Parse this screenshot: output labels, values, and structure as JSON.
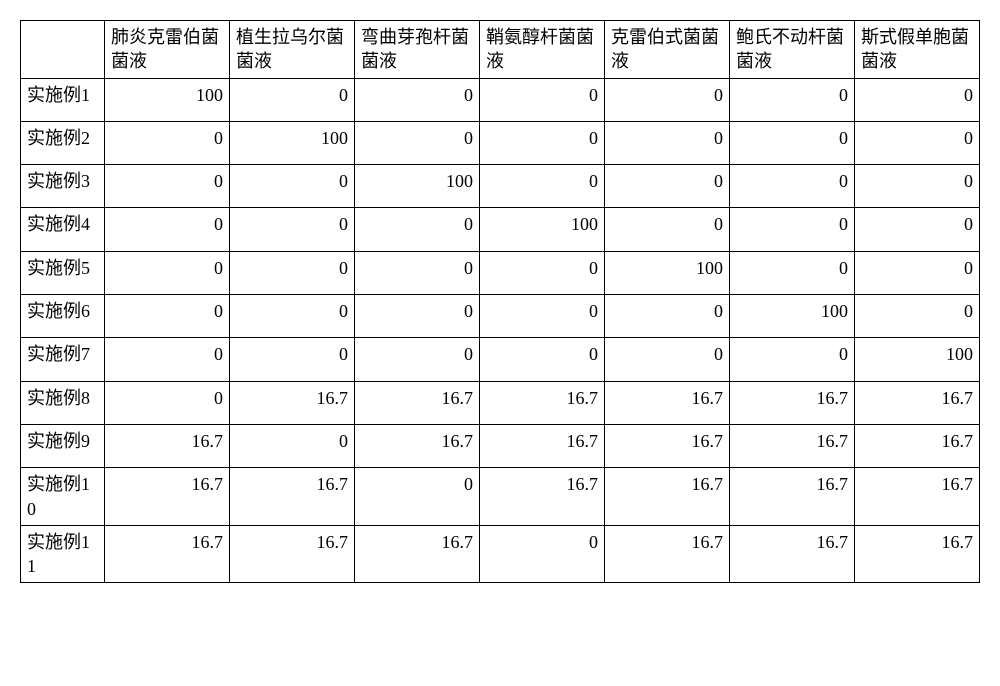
{
  "table": {
    "type": "table",
    "background_color": "#ffffff",
    "border_color": "#000000",
    "text_color": "#000000",
    "font_family": "SimSun",
    "header_fontsize": 18,
    "body_fontsize": 18,
    "column_alignment": [
      "left",
      "right",
      "right",
      "right",
      "right",
      "right",
      "right",
      "right"
    ],
    "columns": [
      "",
      "肺炎克雷伯菌菌液",
      "植生拉乌尔菌菌液",
      "弯曲芽孢杆菌菌液",
      "鞘氨醇杆菌菌液",
      "克雷伯式菌菌液",
      "鲍氏不动杆菌菌液",
      "斯式假单胞菌菌液"
    ],
    "rows": [
      [
        "实施例1",
        "100",
        "0",
        "0",
        "0",
        "0",
        "0",
        "0"
      ],
      [
        "实施例2",
        "0",
        "100",
        "0",
        "0",
        "0",
        "0",
        "0"
      ],
      [
        "实施例3",
        "0",
        "0",
        "100",
        "0",
        "0",
        "0",
        "0"
      ],
      [
        "实施例4",
        "0",
        "0",
        "0",
        "100",
        "0",
        "0",
        "0"
      ],
      [
        "实施例5",
        "0",
        "0",
        "0",
        "0",
        "100",
        "0",
        "0"
      ],
      [
        "实施例6",
        "0",
        "0",
        "0",
        "0",
        "0",
        "100",
        "0"
      ],
      [
        "实施例7",
        "0",
        "0",
        "0",
        "0",
        "0",
        "0",
        "100"
      ],
      [
        "实施例8",
        "0",
        "16.7",
        "16.7",
        "16.7",
        "16.7",
        "16.7",
        "16.7"
      ],
      [
        "实施例9",
        "16.7",
        "0",
        "16.7",
        "16.7",
        "16.7",
        "16.7",
        "16.7"
      ],
      [
        "实施例10",
        "16.7",
        "16.7",
        "0",
        "16.7",
        "16.7",
        "16.7",
        "16.7"
      ],
      [
        "实施例11",
        "16.7",
        "16.7",
        "16.7",
        "0",
        "16.7",
        "16.7",
        "16.7"
      ]
    ]
  }
}
